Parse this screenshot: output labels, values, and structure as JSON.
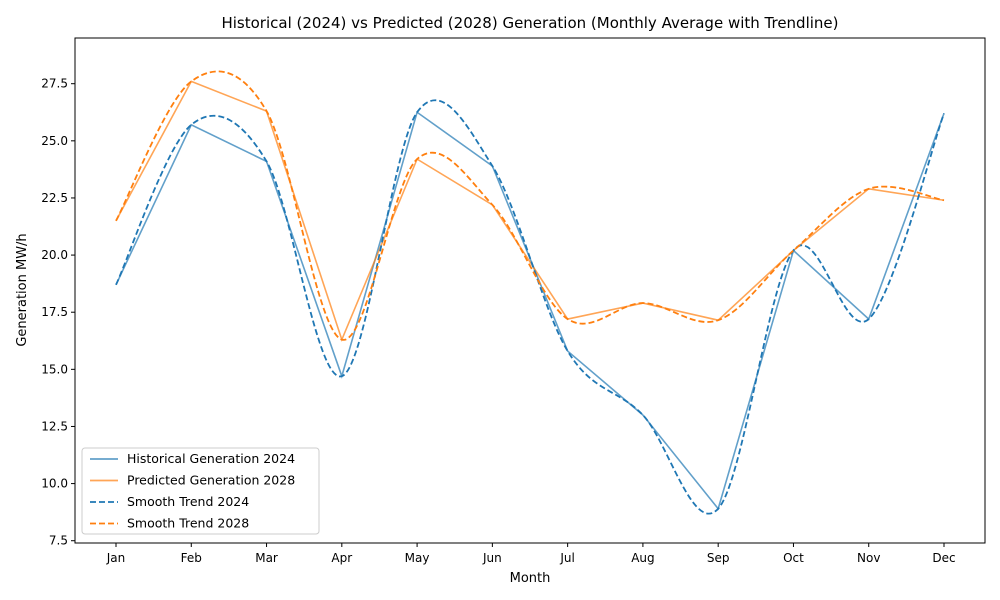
{
  "chart_data": {
    "type": "line",
    "title": "Historical (2024) vs Predicted (2028) Generation (Monthly Average with Trendline)",
    "xlabel": "Month",
    "ylabel": "Generation MW/h",
    "categories": [
      "Jan",
      "Feb",
      "Mar",
      "Apr",
      "May",
      "Jun",
      "Jul",
      "Aug",
      "Sep",
      "Oct",
      "Nov",
      "Dec"
    ],
    "ylim": [
      7.4,
      29.5
    ],
    "yticks": [
      7.5,
      10.0,
      12.5,
      15.0,
      17.5,
      20.0,
      22.5,
      25.0,
      27.5
    ],
    "ytick_labels": [
      "7.5",
      "10.0",
      "12.5",
      "15.0",
      "17.5",
      "20.0",
      "22.5",
      "25.0",
      "27.5"
    ],
    "grid": false,
    "legend_position": "lower-left",
    "series": [
      {
        "name": "Historical Generation 2024",
        "style": "solid",
        "color": "#1f77b4",
        "values": [
          18.7,
          25.7,
          24.1,
          14.7,
          26.25,
          23.9,
          15.8,
          13.0,
          8.9,
          20.2,
          17.2,
          26.2
        ]
      },
      {
        "name": "Predicted Generation 2028",
        "style": "solid",
        "color": "#ff7f0e",
        "values": [
          21.5,
          27.6,
          26.3,
          16.3,
          24.2,
          22.2,
          17.2,
          17.9,
          17.15,
          20.2,
          22.9,
          22.4
        ]
      },
      {
        "name": "Smooth Trend 2024",
        "style": "dashed",
        "color": "#1f77b4",
        "values": [
          18.7,
          25.7,
          24.1,
          14.7,
          26.25,
          23.9,
          15.8,
          13.0,
          8.9,
          20.2,
          17.2,
          26.2
        ]
      },
      {
        "name": "Smooth Trend 2028",
        "style": "dashed",
        "color": "#ff7f0e",
        "values": [
          21.5,
          27.6,
          26.3,
          16.3,
          24.2,
          22.2,
          17.2,
          17.9,
          17.15,
          20.2,
          22.9,
          22.4
        ]
      }
    ]
  }
}
